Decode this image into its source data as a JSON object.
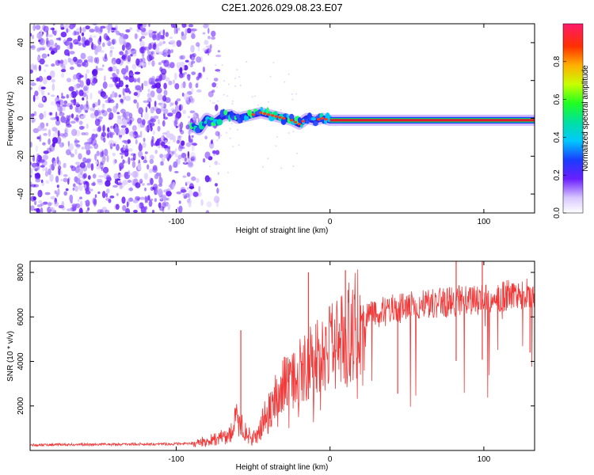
{
  "title": "C2E1.2026.029.08.23.E07",
  "colors": {
    "snr_line": "#f03a3a",
    "spectrum_dots": "#6a1fff",
    "ridge_line": "#e01a2a",
    "axis": "#000000"
  },
  "chart_data": [
    {
      "type": "heatmap",
      "name": "spectrogram",
      "title": "",
      "xlabel": "Height of straight line (km)",
      "ylabel": "Frequency (Hz)",
      "xlim": [
        -195,
        133
      ],
      "ylim": [
        -50,
        50
      ],
      "xticks": [
        -100,
        0,
        100
      ],
      "yticks": [
        -40,
        -20,
        0,
        20,
        40
      ],
      "noise_region_x": [
        -195,
        -80
      ],
      "ridge": {
        "x": [
          -90,
          -85,
          -80,
          -75,
          -70,
          -65,
          -60,
          -55,
          -50,
          -45,
          -40,
          -35,
          -30,
          -25,
          -20,
          -15,
          -10,
          -5,
          0,
          20,
          40,
          60,
          80,
          100,
          133
        ],
        "y": [
          -4,
          -6,
          0,
          -2,
          1,
          2,
          0,
          1,
          2,
          3,
          2,
          1,
          0,
          -1,
          -3,
          0,
          -1,
          0,
          -1,
          -1,
          -1,
          -1,
          -1,
          -1,
          -1
        ]
      },
      "colorbar": {
        "label": "Normalized spectral amplitude",
        "range": [
          0,
          1
        ],
        "ticks": [
          "0.0",
          "0.2",
          "0.4",
          "0.6",
          "0.8"
        ]
      }
    },
    {
      "type": "line",
      "name": "snr",
      "title": "",
      "xlabel": "Height of straight line (km)",
      "ylabel": "SNR (10 * v/v)",
      "xlim": [
        -195,
        133
      ],
      "ylim": [
        0,
        8500
      ],
      "xticks": [
        -100,
        0,
        100
      ],
      "yticks": [
        2000,
        4000,
        6000,
        8000
      ],
      "envelope": {
        "x": [
          -195,
          -90,
          -82,
          -75,
          -65,
          -60,
          -55,
          -50,
          -45,
          -40,
          -35,
          -30,
          -25,
          -20,
          -15,
          -10,
          -5,
          0,
          10,
          20,
          30,
          40,
          50,
          60,
          80,
          100,
          120,
          133
        ],
        "y": [
          250,
          300,
          400,
          500,
          700,
          1500,
          800,
          500,
          1000,
          1800,
          2500,
          3000,
          3300,
          3500,
          3800,
          4000,
          4200,
          4500,
          5000,
          6000,
          6200,
          6300,
          6500,
          6600,
          6700,
          6800,
          7000,
          7100
        ]
      },
      "spikes": [
        {
          "x": -58,
          "y": 5400
        },
        {
          "x": -14,
          "y": 8000
        },
        {
          "x": 10,
          "y": 8100
        },
        {
          "x": 82,
          "y": 8500
        },
        {
          "x": 99,
          "y": 8500
        }
      ],
      "dips": [
        {
          "x": 44,
          "y": 2550
        },
        {
          "x": 130,
          "y": 4400
        }
      ]
    }
  ]
}
